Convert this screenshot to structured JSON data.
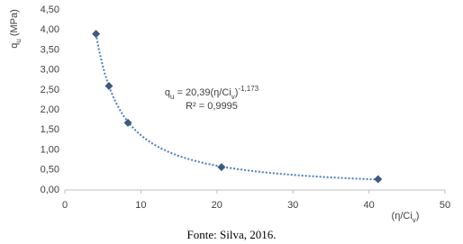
{
  "chart_data": {
    "type": "scatter",
    "x": [
      4.1,
      5.8,
      8.3,
      20.6,
      41.2
    ],
    "values": [
      3.9,
      2.6,
      1.68,
      0.57,
      0.27
    ],
    "color": "#3e5a82",
    "xlim": [
      0,
      50
    ],
    "xticks": [
      0,
      10,
      20,
      30,
      40,
      50
    ],
    "ylim": [
      0,
      4.5
    ],
    "yticks": [
      {
        "value": 0,
        "label": "0,00"
      },
      {
        "value": 0.5,
        "label": "0,50"
      },
      {
        "value": 1,
        "label": "1,00"
      },
      {
        "value": 1.5,
        "label": "1,50"
      },
      {
        "value": 2,
        "label": "2,00"
      },
      {
        "value": 2.5,
        "label": "2,50"
      },
      {
        "value": 3,
        "label": "3,00"
      },
      {
        "value": 3.5,
        "label": "3,50"
      },
      {
        "value": 4,
        "label": "4,00"
      },
      {
        "value": 4.5,
        "label": "4,50"
      }
    ],
    "y_label": [
      {
        "text": "q"
      },
      {
        "text": "u",
        "sub": true
      },
      {
        "text": " (MPa)"
      }
    ],
    "x_label": [
      {
        "text": "(η/Ci"
      },
      {
        "text": "v",
        "sub": true
      },
      {
        "text": ")"
      }
    ],
    "trendline": {
      "type": "power",
      "a": 20.39,
      "b": -1.173,
      "color": "#4a7ebb",
      "equation": [
        {
          "text": "q"
        },
        {
          "text": "u",
          "sub": true
        },
        {
          "text": " = 20,39(η/Ci"
        },
        {
          "text": "v",
          "sub": true
        },
        {
          "text": ")"
        },
        {
          "text": "-1,173",
          "sup": true
        }
      ],
      "r2_label": "R² = 0,9995"
    },
    "caption": "Fonte: Silva, 2016."
  }
}
